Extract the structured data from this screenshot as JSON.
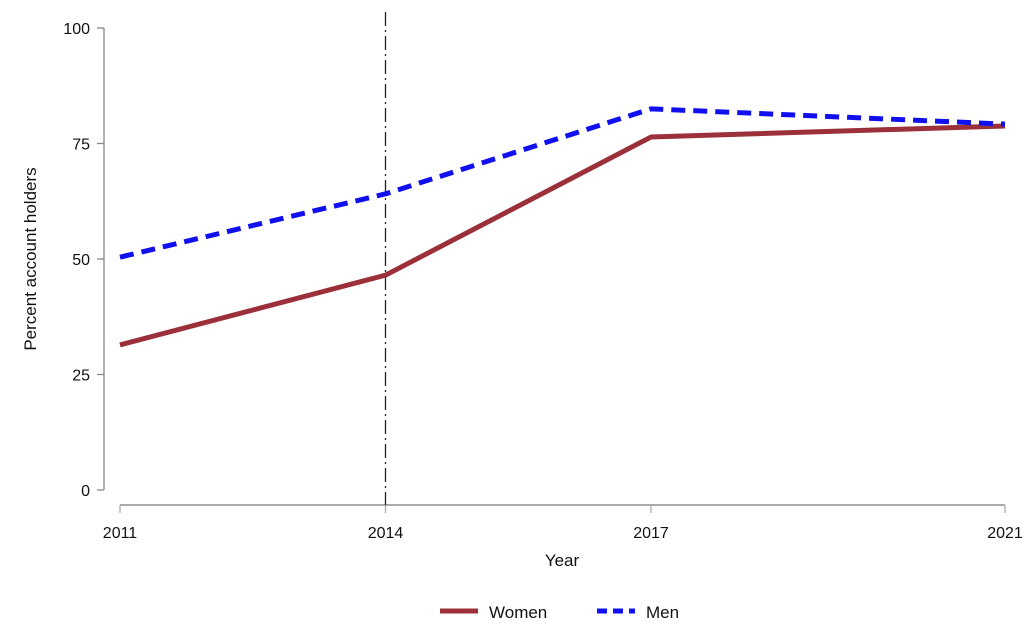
{
  "chart_data": {
    "type": "line",
    "title": "",
    "xlabel": "Year",
    "ylabel": "Percent account holders",
    "x": [
      2011,
      2014,
      2017,
      2021
    ],
    "xticks": [
      "2011",
      "2014",
      "2017",
      "2021"
    ],
    "yticks": [
      "0",
      "25",
      "50",
      "75",
      "100"
    ],
    "ylim": [
      0,
      100
    ],
    "xlim": [
      2011,
      2021
    ],
    "grid": false,
    "legend_position": "bottom",
    "reference_line_x": 2014,
    "series": [
      {
        "name": "Women",
        "values": [
          31.4,
          46.5,
          76.4,
          78.8
        ],
        "color": "#9b2f3a",
        "style": "solid"
      },
      {
        "name": "Men",
        "values": [
          50.4,
          64.1,
          82.5,
          79.2
        ],
        "color": "#1010ee",
        "style": "dashed"
      }
    ]
  }
}
